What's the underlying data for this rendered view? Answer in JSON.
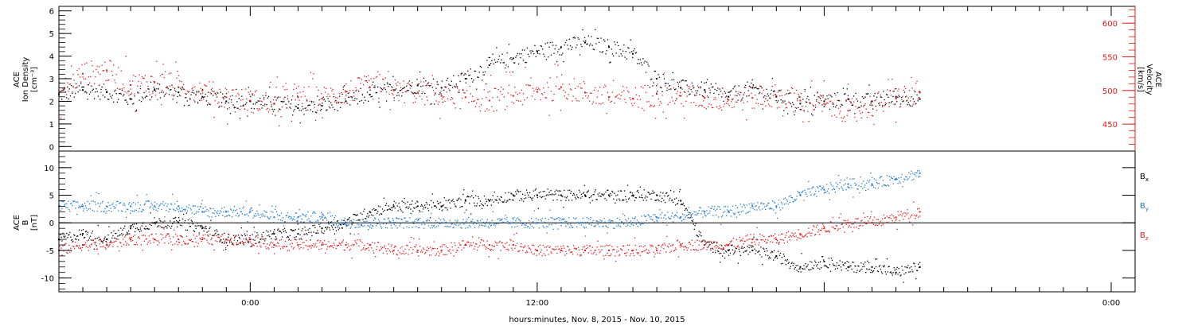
{
  "colors": {
    "black": "#000000",
    "red": "#e41a1c",
    "blue": "#1f78d1",
    "frame": "#000000"
  },
  "footer_label": "hours:minutes, Nov. 8, 2015 - Nov. 10, 2015",
  "chart_data": [
    {
      "type": "scatter",
      "title": "",
      "x_unit": "hours since Nov. 8, 2015 16:00",
      "xlim": [
        0,
        45
      ],
      "x_ticks": [
        {
          "x": 8,
          "label": "0:00"
        },
        {
          "x": 20,
          "label": "12:00"
        },
        {
          "x": 44,
          "label": "0:00"
        }
      ],
      "ylabel_left": [
        "ACE",
        "Ion Density",
        "[cm⁻³]"
      ],
      "ylabel_right": [
        "ACE",
        "Velocity",
        "[km/s]"
      ],
      "ylim_left": [
        -0.2,
        6.2
      ],
      "yticks_left": [
        0,
        1,
        2,
        3,
        4,
        5,
        6
      ],
      "ylim_right": [
        410,
        625
      ],
      "yticks_right": [
        450,
        500,
        550,
        600
      ],
      "series": [
        {
          "axis": "left",
          "color": "black",
          "values": [
            [
              0,
              2.3
            ],
            [
              1,
              2.5
            ],
            [
              2,
              2.4
            ],
            [
              3,
              2.1
            ],
            [
              4,
              2.5
            ],
            [
              5,
              2.4
            ],
            [
              6,
              2.2
            ],
            [
              7,
              2.0
            ],
            [
              8,
              2.0
            ],
            [
              9,
              1.9
            ],
            [
              10,
              1.7
            ],
            [
              11,
              1.8
            ],
            [
              12,
              2.0
            ],
            [
              13,
              2.3
            ],
            [
              14,
              2.5
            ],
            [
              15,
              2.7
            ],
            [
              16,
              2.6
            ],
            [
              17,
              3.0
            ],
            [
              18,
              3.6
            ],
            [
              19,
              3.9
            ],
            [
              20,
              4.2
            ],
            [
              21,
              4.4
            ],
            [
              22,
              4.6
            ],
            [
              23,
              4.4
            ],
            [
              24,
              4.1
            ],
            [
              25,
              3.0
            ],
            [
              26,
              2.6
            ],
            [
              27,
              2.5
            ],
            [
              28,
              2.2
            ],
            [
              29,
              2.6
            ],
            [
              30,
              2.2
            ],
            [
              31,
              1.9
            ],
            [
              32,
              2.0
            ],
            [
              33,
              2.1
            ],
            [
              34,
              2.0
            ],
            [
              35,
              2.2
            ],
            [
              36,
              2.1
            ]
          ]
        },
        {
          "axis": "right",
          "color": "red",
          "values": [
            [
              0,
              495
            ],
            [
              1,
              525
            ],
            [
              2,
              530
            ],
            [
              3,
              508
            ],
            [
              4,
              512
            ],
            [
              5,
              505
            ],
            [
              6,
              500
            ],
            [
              7,
              490
            ],
            [
              8,
              485
            ],
            [
              9,
              480
            ],
            [
              10,
              490
            ],
            [
              11,
              488
            ],
            [
              12,
              498
            ],
            [
              13,
              505
            ],
            [
              14,
              500
            ],
            [
              15,
              497
            ],
            [
              16,
              492
            ],
            [
              17,
              490
            ],
            [
              18,
              485
            ],
            [
              19,
              492
            ],
            [
              20,
              498
            ],
            [
              21,
              505
            ],
            [
              22,
              497
            ],
            [
              23,
              490
            ],
            [
              24,
              488
            ],
            [
              25,
              495
            ],
            [
              26,
              492
            ],
            [
              27,
              489
            ],
            [
              28,
              486
            ],
            [
              29,
              489
            ],
            [
              30,
              492
            ],
            [
              31,
              485
            ],
            [
              32,
              480
            ],
            [
              33,
              470
            ],
            [
              34,
              478
            ],
            [
              35,
              488
            ],
            [
              36,
              497
            ]
          ]
        }
      ]
    },
    {
      "type": "scatter",
      "title": "",
      "ylabel": [
        "ACE",
        "B",
        "[nT]"
      ],
      "ylim": [
        -12.5,
        13
      ],
      "yticks": [
        -10,
        -5,
        0,
        5,
        10
      ],
      "zero_line": true,
      "series": [
        {
          "name": "Bx",
          "legend_main": "B",
          "legend_sub": "x",
          "color": "black",
          "values": [
            [
              0,
              -3
            ],
            [
              1,
              -2
            ],
            [
              2,
              -3
            ],
            [
              3,
              -1
            ],
            [
              4,
              0
            ],
            [
              5,
              0
            ],
            [
              6,
              -1
            ],
            [
              7,
              -3
            ],
            [
              8,
              -3
            ],
            [
              9,
              -2
            ],
            [
              10,
              -2
            ],
            [
              11,
              -1
            ],
            [
              12,
              0
            ],
            [
              13,
              2
            ],
            [
              14,
              3
            ],
            [
              15,
              3
            ],
            [
              16,
              3
            ],
            [
              17,
              4
            ],
            [
              18,
              4
            ],
            [
              19,
              5
            ],
            [
              20,
              5
            ],
            [
              21,
              5
            ],
            [
              22,
              5
            ],
            [
              23,
              5
            ],
            [
              24,
              5
            ],
            [
              25,
              5
            ],
            [
              26,
              4
            ],
            [
              27,
              -4
            ],
            [
              28,
              -5
            ],
            [
              29,
              -5
            ],
            [
              30,
              -6
            ],
            [
              31,
              -8
            ],
            [
              32,
              -7
            ],
            [
              33,
              -8
            ],
            [
              34,
              -8
            ],
            [
              35,
              -9
            ],
            [
              36,
              -8
            ]
          ]
        },
        {
          "name": "By",
          "legend_main": "B",
          "legend_sub": "y",
          "color": "blue",
          "values": [
            [
              0,
              3
            ],
            [
              1,
              3
            ],
            [
              2,
              3
            ],
            [
              3,
              3
            ],
            [
              4,
              3
            ],
            [
              5,
              3
            ],
            [
              6,
              2
            ],
            [
              7,
              2
            ],
            [
              8,
              2
            ],
            [
              9,
              1
            ],
            [
              10,
              1
            ],
            [
              11,
              1
            ],
            [
              12,
              0
            ],
            [
              13,
              0
            ],
            [
              14,
              0
            ],
            [
              15,
              0
            ],
            [
              16,
              0
            ],
            [
              17,
              0
            ],
            [
              18,
              0
            ],
            [
              19,
              0
            ],
            [
              20,
              0
            ],
            [
              21,
              0
            ],
            [
              22,
              0
            ],
            [
              23,
              0
            ],
            [
              24,
              0
            ],
            [
              25,
              1
            ],
            [
              26,
              1
            ],
            [
              27,
              2
            ],
            [
              28,
              2
            ],
            [
              29,
              3
            ],
            [
              30,
              3
            ],
            [
              31,
              5
            ],
            [
              32,
              6
            ],
            [
              33,
              7
            ],
            [
              34,
              7
            ],
            [
              35,
              8
            ],
            [
              36,
              9
            ]
          ]
        },
        {
          "name": "Bz",
          "legend_main": "B",
          "legend_sub": "z",
          "color": "red",
          "values": [
            [
              0,
              -5
            ],
            [
              1,
              -4
            ],
            [
              2,
              -4
            ],
            [
              3,
              -3
            ],
            [
              4,
              -3
            ],
            [
              5,
              -3
            ],
            [
              6,
              -3
            ],
            [
              7,
              -3
            ],
            [
              8,
              -3
            ],
            [
              9,
              -4
            ],
            [
              10,
              -4
            ],
            [
              11,
              -4
            ],
            [
              12,
              -4
            ],
            [
              13,
              -4
            ],
            [
              14,
              -5
            ],
            [
              15,
              -5
            ],
            [
              16,
              -5
            ],
            [
              17,
              -4
            ],
            [
              18,
              -4
            ],
            [
              19,
              -4
            ],
            [
              20,
              -5
            ],
            [
              21,
              -5
            ],
            [
              22,
              -5
            ],
            [
              23,
              -5
            ],
            [
              24,
              -5
            ],
            [
              25,
              -5
            ],
            [
              26,
              -4
            ],
            [
              27,
              -4
            ],
            [
              28,
              -4
            ],
            [
              29,
              -3
            ],
            [
              30,
              -3
            ],
            [
              31,
              -2
            ],
            [
              32,
              -1
            ],
            [
              33,
              0
            ],
            [
              34,
              0
            ],
            [
              35,
              1
            ],
            [
              36,
              2
            ]
          ]
        }
      ]
    }
  ]
}
